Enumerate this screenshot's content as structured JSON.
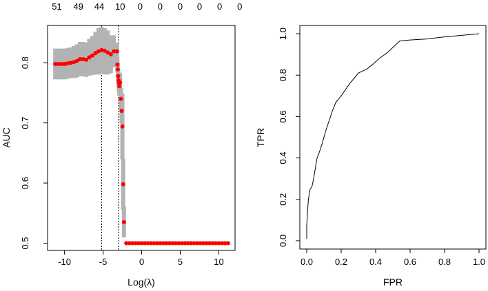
{
  "chart_data": [
    {
      "type": "scatter",
      "xlabel": "Log(λ)",
      "ylabel": "AUC",
      "xlim": [
        -12.2,
        12.1
      ],
      "ylim": [
        0.488,
        0.862
      ],
      "xticks": [
        -10,
        -5,
        0,
        5,
        10
      ],
      "xtick_labels": [
        "-10",
        "-5",
        "0",
        "5",
        "10"
      ],
      "yticks": [
        0.5,
        0.6,
        0.7,
        0.8
      ],
      "ytick_labels": [
        "0.5",
        "0.6",
        "0.7",
        "0.8"
      ],
      "top_axis_labels": [
        {
          "x": -11.0,
          "label": "51"
        },
        {
          "x": -8.2,
          "label": "49"
        },
        {
          "x": -5.5,
          "label": "44"
        },
        {
          "x": -2.8,
          "label": "10"
        },
        {
          "x": -0.2,
          "label": "0"
        },
        {
          "x": 2.4,
          "label": "0"
        },
        {
          "x": 5.0,
          "label": "0"
        },
        {
          "x": 7.5,
          "label": "0"
        },
        {
          "x": 10.1,
          "label": "0"
        },
        {
          "x": 12.7,
          "label": "0"
        }
      ],
      "vlines": [
        -5.2,
        -3.0
      ],
      "series": [
        {
          "color": "#ff0000",
          "error_color": "#b3b3b3",
          "points": [
            {
              "x": -11.2,
              "y": 0.798,
              "lo": 0.773,
              "hi": 0.823
            },
            {
              "x": -10.8,
              "y": 0.798,
              "lo": 0.773,
              "hi": 0.823
            },
            {
              "x": -10.4,
              "y": 0.798,
              "lo": 0.773,
              "hi": 0.823
            },
            {
              "x": -10.0,
              "y": 0.798,
              "lo": 0.773,
              "hi": 0.823
            },
            {
              "x": -9.6,
              "y": 0.799,
              "lo": 0.774,
              "hi": 0.824
            },
            {
              "x": -9.2,
              "y": 0.8,
              "lo": 0.775,
              "hi": 0.825
            },
            {
              "x": -8.8,
              "y": 0.801,
              "lo": 0.775,
              "hi": 0.827
            },
            {
              "x": -8.4,
              "y": 0.803,
              "lo": 0.776,
              "hi": 0.83
            },
            {
              "x": -8.0,
              "y": 0.806,
              "lo": 0.778,
              "hi": 0.834
            },
            {
              "x": -7.6,
              "y": 0.806,
              "lo": 0.778,
              "hi": 0.834
            },
            {
              "x": -7.2,
              "y": 0.805,
              "lo": 0.777,
              "hi": 0.833
            },
            {
              "x": -6.8,
              "y": 0.809,
              "lo": 0.779,
              "hi": 0.839
            },
            {
              "x": -6.4,
              "y": 0.812,
              "lo": 0.78,
              "hi": 0.844
            },
            {
              "x": -6.0,
              "y": 0.816,
              "lo": 0.781,
              "hi": 0.851
            },
            {
              "x": -5.6,
              "y": 0.819,
              "lo": 0.781,
              "hi": 0.857
            },
            {
              "x": -5.2,
              "y": 0.821,
              "lo": 0.782,
              "hi": 0.859
            },
            {
              "x": -4.8,
              "y": 0.82,
              "lo": 0.781,
              "hi": 0.857
            },
            {
              "x": -4.4,
              "y": 0.817,
              "lo": 0.781,
              "hi": 0.853
            },
            {
              "x": -4.0,
              "y": 0.814,
              "lo": 0.783,
              "hi": 0.845
            },
            {
              "x": -3.6,
              "y": 0.819,
              "lo": 0.793,
              "hi": 0.845
            },
            {
              "x": -3.2,
              "y": 0.819,
              "lo": 0.805,
              "hi": 0.833
            },
            {
              "x": -3.15,
              "y": 0.797,
              "lo": 0.785,
              "hi": 0.809
            },
            {
              "x": -3.1,
              "y": 0.789,
              "lo": 0.778,
              "hi": 0.8
            },
            {
              "x": -3.05,
              "y": 0.778,
              "lo": 0.766,
              "hi": 0.79
            },
            {
              "x": -3.0,
              "y": 0.771,
              "lo": 0.758,
              "hi": 0.784
            },
            {
              "x": -2.95,
              "y": 0.766,
              "lo": 0.752,
              "hi": 0.78
            },
            {
              "x": -2.9,
              "y": 0.761,
              "lo": 0.746,
              "hi": 0.776
            },
            {
              "x": -2.8,
              "y": 0.767,
              "lo": 0.752,
              "hi": 0.782
            },
            {
              "x": -2.7,
              "y": 0.74,
              "lo": 0.722,
              "hi": 0.758
            },
            {
              "x": -2.6,
              "y": 0.72,
              "lo": 0.7,
              "hi": 0.74
            },
            {
              "x": -2.5,
              "y": 0.694,
              "lo": 0.64,
              "hi": 0.748
            },
            {
              "x": -2.4,
              "y": 0.598,
              "lo": 0.556,
              "hi": 0.64
            },
            {
              "x": -2.3,
              "y": 0.535,
              "lo": 0.51,
              "hi": 0.56
            },
            {
              "x": -2.0,
              "y": 0.5
            },
            {
              "x": -1.6,
              "y": 0.5
            },
            {
              "x": -1.2,
              "y": 0.5
            },
            {
              "x": -0.8,
              "y": 0.5
            },
            {
              "x": -0.4,
              "y": 0.5
            },
            {
              "x": 0.0,
              "y": 0.5
            },
            {
              "x": 0.4,
              "y": 0.5
            },
            {
              "x": 0.8,
              "y": 0.5
            },
            {
              "x": 1.2,
              "y": 0.5
            },
            {
              "x": 1.6,
              "y": 0.5
            },
            {
              "x": 2.0,
              "y": 0.5
            },
            {
              "x": 2.4,
              "y": 0.5
            },
            {
              "x": 2.8,
              "y": 0.5
            },
            {
              "x": 3.2,
              "y": 0.5
            },
            {
              "x": 3.6,
              "y": 0.5
            },
            {
              "x": 4.0,
              "y": 0.5
            },
            {
              "x": 4.4,
              "y": 0.5
            },
            {
              "x": 4.8,
              "y": 0.5
            },
            {
              "x": 5.2,
              "y": 0.5
            },
            {
              "x": 5.6,
              "y": 0.5
            },
            {
              "x": 6.0,
              "y": 0.5
            },
            {
              "x": 6.4,
              "y": 0.5
            },
            {
              "x": 6.8,
              "y": 0.5
            },
            {
              "x": 7.2,
              "y": 0.5
            },
            {
              "x": 7.6,
              "y": 0.5
            },
            {
              "x": 8.0,
              "y": 0.5
            },
            {
              "x": 8.4,
              "y": 0.5
            },
            {
              "x": 8.8,
              "y": 0.5
            },
            {
              "x": 9.2,
              "y": 0.5
            },
            {
              "x": 9.6,
              "y": 0.5
            },
            {
              "x": 10.0,
              "y": 0.5
            },
            {
              "x": 10.4,
              "y": 0.5
            },
            {
              "x": 10.8,
              "y": 0.5
            },
            {
              "x": 11.2,
              "y": 0.5
            }
          ]
        }
      ]
    },
    {
      "type": "line",
      "xlabel": "FPR",
      "ylabel": "TPR",
      "xlim": [
        -0.04,
        1.04
      ],
      "ylim": [
        -0.04,
        1.04
      ],
      "xticks": [
        0,
        0.2,
        0.4,
        0.6,
        0.8,
        1.0
      ],
      "xtick_labels": [
        "0.0",
        "0.2",
        "0.4",
        "0.6",
        "0.8",
        "1.0"
      ],
      "yticks": [
        0,
        0.2,
        0.4,
        0.6,
        0.8,
        1.0
      ],
      "ytick_labels": [
        "0.0",
        "0.2",
        "0.4",
        "0.6",
        "0.8",
        "1.0"
      ],
      "series": [
        {
          "color": "#000000",
          "x": [
            0.0,
            0.0,
            0.005,
            0.01,
            0.015,
            0.02,
            0.03,
            0.04,
            0.05,
            0.06,
            0.07,
            0.09,
            0.11,
            0.13,
            0.15,
            0.17,
            0.18,
            0.2,
            0.25,
            0.3,
            0.35,
            0.38,
            0.42,
            0.47,
            0.52,
            0.54,
            0.6,
            0.7,
            0.8,
            0.9,
            1.0
          ],
          "y": [
            0.01,
            0.07,
            0.15,
            0.2,
            0.23,
            0.25,
            0.26,
            0.3,
            0.35,
            0.4,
            0.42,
            0.47,
            0.53,
            0.58,
            0.63,
            0.67,
            0.68,
            0.7,
            0.76,
            0.81,
            0.83,
            0.85,
            0.88,
            0.91,
            0.95,
            0.965,
            0.97,
            0.975,
            0.985,
            0.992,
            1.0
          ]
        }
      ]
    }
  ]
}
